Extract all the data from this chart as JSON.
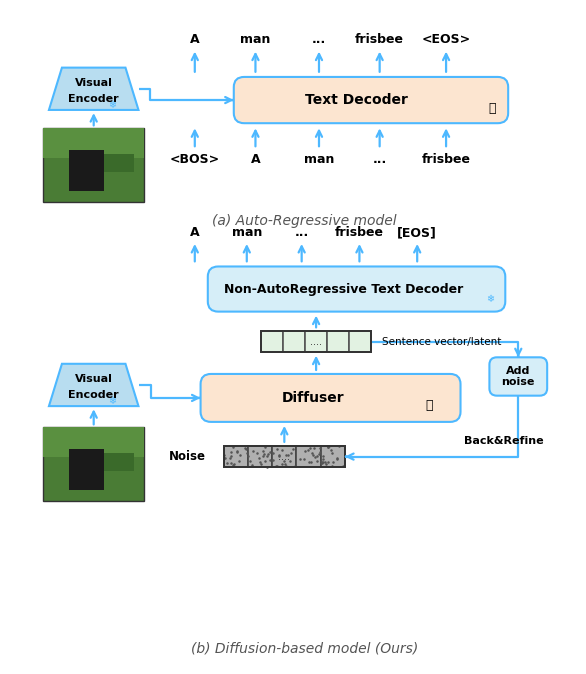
{
  "fig_width": 5.86,
  "fig_height": 6.74,
  "bg_color": "#ffffff",
  "title_a": "(a) Auto-Regressive model",
  "title_b": "(b) Diffusion-based model (Ours)",
  "arrow_color": "#4db8ff",
  "box_fill_ar": "#fce5d0",
  "box_fill_nar": "#d6eef8",
  "box_fill_diffuser": "#fce5d0",
  "box_fill_addnoise": "#d6eef8",
  "box_fill_latentvec": "#e2f2e2",
  "encoder_fill": "#b8ddf0",
  "snowflake_color": "#4db8ff",
  "tokens_top_ar": [
    "A",
    "man",
    "...",
    "frisbee",
    "<EOS>"
  ],
  "tokens_bot_ar": [
    "<BOS>",
    "A",
    "man",
    "...",
    "frisbee"
  ],
  "tokens_top_b": [
    "A",
    "man",
    "...",
    "frisbee",
    "[EOS]"
  ],
  "decoder_label_ar": "Text Decoder",
  "decoder_label_nar": "Non-AutoRegressive Text Decoder",
  "diffuser_label": "Diffuser",
  "sentence_label": "Sentence vector/latent",
  "noise_label": "Noise",
  "addnoise_label": "Add\nnoise",
  "backrefine_label": "Back&Refine",
  "visual_label_1": "Visual",
  "visual_label_2": "Encoder"
}
